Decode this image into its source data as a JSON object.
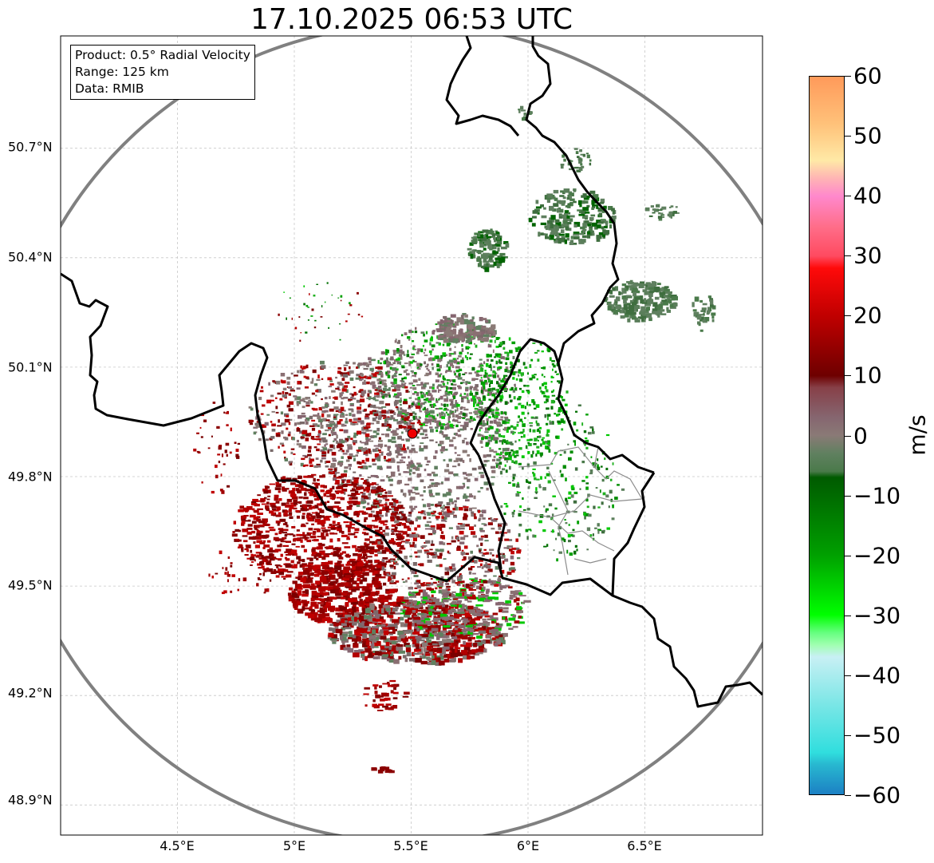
{
  "title": "17.10.2025 06:53 UTC",
  "info": {
    "product": "Product: 0.5° Radial Velocity",
    "range": "Range: 125 km",
    "source": "Data: RMIB"
  },
  "axes": {
    "x_ticks": [
      "4.5°E",
      "5°E",
      "5.5°E",
      "6°E",
      "6.5°E"
    ],
    "y_ticks": [
      "50.7°N",
      "50.4°N",
      "50.1°N",
      "49.8°N",
      "49.5°N",
      "49.2°N",
      "48.9°N"
    ],
    "lon_values": [
      4.5,
      5.0,
      5.5,
      6.0,
      6.5
    ],
    "lat_values": [
      50.7,
      50.4,
      50.1,
      49.8,
      49.5,
      49.2,
      48.9
    ]
  },
  "radar": {
    "lon": 5.5,
    "lat": 49.91,
    "range_km": 125
  },
  "colorbar": {
    "unit": "m/s",
    "min": -60,
    "max": 60,
    "tick_labels": [
      "60",
      "50",
      "40",
      "30",
      "20",
      "10",
      "0",
      "−10",
      "−20",
      "−30",
      "−40",
      "−50",
      "−60"
    ],
    "stops": [
      {
        "v": 60,
        "c": "#ff9a5a"
      },
      {
        "v": 52,
        "c": "#ffc27a"
      },
      {
        "v": 46,
        "c": "#ffe9a6"
      },
      {
        "v": 43,
        "c": "#ffb4b4"
      },
      {
        "v": 40,
        "c": "#ff88cc"
      },
      {
        "v": 35,
        "c": "#ff6e8a"
      },
      {
        "v": 30,
        "c": "#ff4a60"
      },
      {
        "v": 28,
        "c": "#ff0a0a"
      },
      {
        "v": 20,
        "c": "#c00000"
      },
      {
        "v": 10,
        "c": "#6e0000"
      },
      {
        "v": 8,
        "c": "#874048"
      },
      {
        "v": 3,
        "c": "#866670"
      },
      {
        "v": 0,
        "c": "#8a7a76"
      },
      {
        "v": -3,
        "c": "#608060"
      },
      {
        "v": -6,
        "c": "#4a7a4a"
      },
      {
        "v": -7,
        "c": "#005a00"
      },
      {
        "v": -20,
        "c": "#00a000"
      },
      {
        "v": -30,
        "c": "#00ff00"
      },
      {
        "v": -33,
        "c": "#66ff80"
      },
      {
        "v": -35,
        "c": "#a0ffb0"
      },
      {
        "v": -37,
        "c": "#c8f0f4"
      },
      {
        "v": -45,
        "c": "#7ae6e6"
      },
      {
        "v": -53,
        "c": "#30dede"
      },
      {
        "v": -55,
        "c": "#28b8d0"
      },
      {
        "v": -60,
        "c": "#1c80c4"
      }
    ]
  },
  "colors": {
    "border": "#000000",
    "range_ring": "#808080",
    "admin_lines": "#8c8c8c",
    "radar_site": "#ee0000",
    "grid": "#c8c8c8"
  }
}
